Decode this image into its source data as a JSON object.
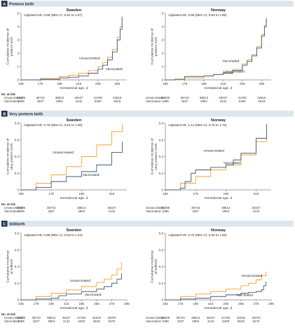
{
  "colors": {
    "unvaccinated": "#f5a032",
    "vaccinated": "#3b5a7a",
    "panel_bar": "#dde6ee",
    "panel_letter_bg": "#1f3552"
  },
  "panels": [
    {
      "letter": "A",
      "title": "Preterm birth",
      "ylabel": "Cumulative incidence of preterm birth",
      "xlabel": "Gestational age, d",
      "risk_header": "No. at risk",
      "charts": [
        {
          "country": "Sweden",
          "hr_text": "Adjusted HR, 0.99 (95% CI, 0.91 to 1.07)",
          "type": "line",
          "xlim": [
            155,
            265
          ],
          "ylim": [
            0,
            5
          ],
          "x_ticks": [
            "155",
            "175",
            "195",
            "215",
            "235",
            "255"
          ],
          "y_ticks": [
            "0",
            "1",
            "2",
            "3",
            "4",
            "5"
          ],
          "series": [
            {
              "name": "Unvaccinated",
              "x": [
                155,
                175,
                195,
                205,
                215,
                225,
                235,
                240,
                245,
                250,
                255,
                258,
                260
              ],
              "y": [
                0,
                0.1,
                0.25,
                0.35,
                0.5,
                0.7,
                1.0,
                1.3,
                1.7,
                2.3,
                3.2,
                4.0,
                4.8
              ]
            },
            {
              "name": "Vaccinated",
              "x": [
                155,
                175,
                195,
                205,
                215,
                225,
                235,
                240,
                245,
                250,
                255,
                258,
                260
              ],
              "y": [
                0,
                0.05,
                0.15,
                0.2,
                0.3,
                0.5,
                0.8,
                1.1,
                1.5,
                2.1,
                3.0,
                3.8,
                4.7
              ]
            }
          ],
          "risk_x": [
            155,
            175,
            195,
            215,
            235,
            255
          ],
          "risk_rows": [
            {
              "label": "Unvaccinated",
              "values": [
                "34406",
                "36743",
                "38513",
                "40227",
                "41782",
                "42515"
              ]
            },
            {
              "label": "Vaccinated",
              "values": [
                "1096",
                "1847",
                "2904",
                "4142",
                "5400",
                "6519"
              ]
            }
          ]
        },
        {
          "country": "Norway",
          "hr_text": "Adjusted HR, 0.95 (95% CI, 0.83 to 1.08)",
          "type": "line",
          "xlim": [
            155,
            265
          ],
          "ylim": [
            0,
            5
          ],
          "x_ticks": [
            "155",
            "175",
            "195",
            "215",
            "235",
            "255"
          ],
          "y_ticks": [
            "0",
            "1",
            "2",
            "3",
            "4",
            "5"
          ],
          "series": [
            {
              "name": "Unvaccinated",
              "x": [
                155,
                175,
                195,
                205,
                215,
                225,
                235,
                240,
                245,
                250,
                255,
                258,
                260
              ],
              "y": [
                0,
                0.15,
                0.3,
                0.4,
                0.55,
                0.8,
                1.2,
                1.5,
                1.9,
                2.5,
                3.4,
                4.1,
                4.7
              ]
            },
            {
              "name": "Vaccinated",
              "x": [
                155,
                165,
                175,
                195,
                205,
                215,
                225,
                235,
                240,
                245,
                250,
                255,
                258,
                260
              ],
              "y": [
                0,
                0.05,
                0.25,
                0.3,
                0.4,
                0.5,
                0.7,
                1.1,
                1.4,
                1.8,
                2.4,
                3.3,
                4.0,
                4.6
              ]
            }
          ],
          "risk_x": [
            155,
            175,
            195,
            215,
            235,
            255
          ],
          "risk_rows": [
            {
              "label": "Unvaccinated",
              "values": [
                "34406",
                "36743",
                "38513",
                "40227",
                "41782",
                "42515"
              ]
            },
            {
              "label": "Vaccinated",
              "values": [
                "1096",
                "1847",
                "2904",
                "4142",
                "5400",
                "6519"
              ]
            }
          ]
        }
      ]
    },
    {
      "letter": "B",
      "title": "Very preterm birth",
      "ylabel": "Cumulative incidence of very preterm birth",
      "xlabel": "Gestational age, d",
      "risk_header": "No. at risk",
      "charts": [
        {
          "country": "Sweden",
          "hr_text": "Adjusted HR, 0.78 (95% CI, 0.61 to 1.00)",
          "type": "line",
          "xlim": [
            155,
            225
          ],
          "ylim": [
            0,
            0.8
          ],
          "x_ticks": [
            "155",
            "175",
            "195",
            "215"
          ],
          "y_ticks": [
            "0",
            "0.2",
            "0.4",
            "0.6",
            "0.8"
          ],
          "series": [
            {
              "name": "Unvaccinated",
              "x": [
                155,
                165,
                175,
                185,
                195,
                205,
                215,
                222
              ],
              "y": [
                0,
                0.08,
                0.18,
                0.28,
                0.4,
                0.54,
                0.7,
                0.8
              ]
            },
            {
              "name": "Vaccinated",
              "x": [
                155,
                165,
                175,
                185,
                195,
                205,
                215,
                222
              ],
              "y": [
                0,
                0.03,
                0.1,
                0.16,
                0.22,
                0.3,
                0.45,
                0.58
              ]
            }
          ],
          "risk_x": [
            155,
            175,
            195,
            215
          ],
          "risk_rows": [
            {
              "label": "Unvaccinated",
              "values": [
                "34406",
                "36743",
                "38513",
                "40227"
              ]
            },
            {
              "label": "Vaccinated",
              "values": [
                "1096",
                "1847",
                "2904",
                "4142"
              ]
            }
          ]
        },
        {
          "country": "Norway",
          "hr_text": "Adjusted HR, 1.14 (95% CI, 0.76 to 1.72)",
          "type": "line",
          "xlim": [
            155,
            225
          ],
          "ylim": [
            0,
            0.8
          ],
          "x_ticks": [
            "155",
            "175",
            "195",
            "215"
          ],
          "y_ticks": [
            "0",
            "0.2",
            "0.4",
            "0.6",
            "0.8"
          ],
          "series": [
            {
              "name": "Unvaccinated",
              "x": [
                155,
                165,
                175,
                185,
                195,
                205,
                215,
                222
              ],
              "y": [
                0,
                0.08,
                0.16,
                0.24,
                0.3,
                0.42,
                0.58,
                0.7
              ]
            },
            {
              "name": "Vaccinated",
              "x": [
                155,
                165,
                168,
                172,
                175,
                185,
                195,
                200,
                205,
                215,
                222
              ],
              "y": [
                0,
                0.02,
                0.1,
                0.2,
                0.24,
                0.27,
                0.3,
                0.36,
                0.44,
                0.62,
                0.79
              ]
            }
          ],
          "risk_x": [
            155,
            175,
            195,
            215
          ],
          "risk_rows": [
            {
              "label": "Unvaccinated",
              "values": [
                "34406",
                "36743",
                "38513",
                "40227"
              ]
            },
            {
              "label": "Vaccinated",
              "values": [
                "1096",
                "1847",
                "2904",
                "4142"
              ]
            }
          ]
        }
      ]
    },
    {
      "letter": "C",
      "title": "Stillbirth",
      "ylabel": "Cumulative incidence of stillbirth",
      "xlabel": "Gestational age, d",
      "risk_header": "No. at risk",
      "charts": [
        {
          "country": "Sweden",
          "hr_text": "Adjusted HR, 0.88 (95% CI, 0.63 to 1.24)",
          "type": "line",
          "xlim": [
            155,
            295
          ],
          "ylim": [
            0,
            0.8
          ],
          "x_ticks": [
            "155",
            "175",
            "195",
            "215",
            "235",
            "255",
            "275",
            "295"
          ],
          "y_ticks": [
            "0",
            "0.2",
            "0.4",
            "0.6",
            "0.8"
          ],
          "series": [
            {
              "name": "Unvaccinated",
              "x": [
                155,
                175,
                195,
                215,
                235,
                255,
                265,
                275,
                282,
                288
              ],
              "y": [
                0,
                0.04,
                0.08,
                0.12,
                0.16,
                0.21,
                0.25,
                0.3,
                0.37,
                0.45
              ]
            },
            {
              "name": "Vaccinated",
              "x": [
                155,
                175,
                195,
                205,
                215,
                235,
                255,
                265,
                275,
                282,
                288
              ],
              "y": [
                0,
                0.01,
                0.02,
                0.05,
                0.07,
                0.1,
                0.13,
                0.16,
                0.2,
                0.25,
                0.32
              ]
            }
          ],
          "risk_x": [
            155,
            175,
            195,
            215,
            235,
            255,
            275
          ],
          "risk_rows": [
            {
              "label": "Unvaccinated",
              "values": [
                "34406",
                "36743",
                "38513",
                "40227",
                "41782",
                "42515",
                "32076"
              ]
            },
            {
              "label": "Vaccinated",
              "values": [
                "1096",
                "1847",
                "2904",
                "4142",
                "5400",
                "6519",
                "5275"
              ]
            }
          ]
        },
        {
          "country": "Norway",
          "hr_text": "Adjusted HR, 0.75 (95% CI, 0.34 to 1.63)",
          "type": "line",
          "xlim": [
            155,
            295
          ],
          "ylim": [
            0,
            0.8
          ],
          "x_ticks": [
            "155",
            "175",
            "195",
            "215",
            "235",
            "255",
            "275",
            "295"
          ],
          "y_ticks": [
            "0",
            "0.2",
            "0.4",
            "0.6",
            "0.8"
          ],
          "series": [
            {
              "name": "Unvaccinated",
              "x": [
                155,
                175,
                195,
                215,
                235,
                255,
                265,
                275,
                282,
                288
              ],
              "y": [
                0,
                0.04,
                0.07,
                0.1,
                0.13,
                0.17,
                0.2,
                0.24,
                0.29,
                0.34
              ]
            },
            {
              "name": "Vaccinated",
              "x": [
                155,
                175,
                195,
                215,
                235,
                255,
                265,
                275,
                282,
                285,
                288
              ],
              "y": [
                0,
                0.01,
                0.02,
                0.04,
                0.06,
                0.08,
                0.09,
                0.1,
                0.12,
                0.17,
                0.22
              ]
            }
          ],
          "risk_x": [
            155,
            175,
            195,
            215,
            235,
            255,
            275
          ],
          "risk_rows": [
            {
              "label": "Unvaccinated",
              "values": [
                "34406",
                "36743",
                "38513",
                "40227",
                "41782",
                "42515",
                "32076"
              ]
            },
            {
              "label": "Vaccinated",
              "values": [
                "1096",
                "1847",
                "2904",
                "4142",
                "5400",
                "6519",
                "5275"
              ]
            }
          ]
        }
      ]
    }
  ]
}
